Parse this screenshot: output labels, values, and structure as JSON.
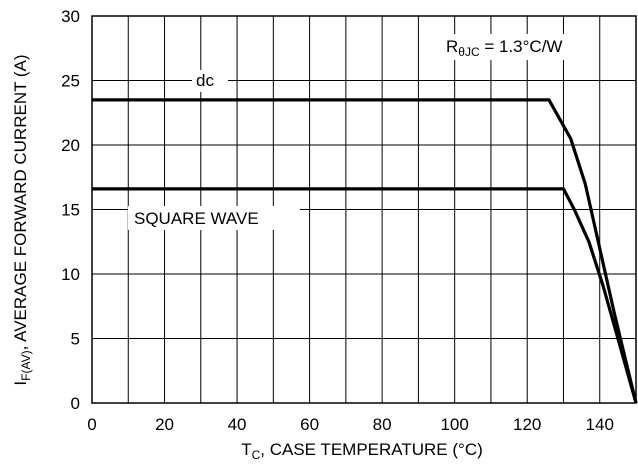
{
  "chart_data": {
    "type": "line",
    "xlabel": {
      "main": "T",
      "sub": "C",
      "rest": ", CASE TEMPERATURE (°C)"
    },
    "ylabel": {
      "main": "I",
      "sub": "F(AV)",
      "rest": ", AVERAGE FORWARD CURRENT (A)"
    },
    "xlim": [
      0,
      150
    ],
    "ylim": [
      0,
      30
    ],
    "xticks": [
      "0",
      "20",
      "40",
      "60",
      "80",
      "100",
      "120",
      "140"
    ],
    "yticks": [
      "0",
      "5",
      "10",
      "15",
      "20",
      "25",
      "30"
    ],
    "grid": true,
    "annotation": {
      "main": "R",
      "sub": "θJC",
      "rest": " = 1.3°C/W"
    },
    "series": [
      {
        "name": "dc",
        "points": [
          [
            0,
            23.5
          ],
          [
            126,
            23.5
          ],
          [
            128,
            22.5
          ],
          [
            132,
            20.5
          ],
          [
            136,
            17.0
          ],
          [
            140,
            12.0
          ],
          [
            144,
            7.0
          ],
          [
            150,
            0
          ]
        ]
      },
      {
        "name": "SQUARE WAVE",
        "points": [
          [
            0,
            16.6
          ],
          [
            130,
            16.6
          ],
          [
            133,
            15.0
          ],
          [
            137,
            12.5
          ],
          [
            141,
            9.0
          ],
          [
            145,
            5.0
          ],
          [
            150,
            0
          ]
        ]
      }
    ]
  }
}
